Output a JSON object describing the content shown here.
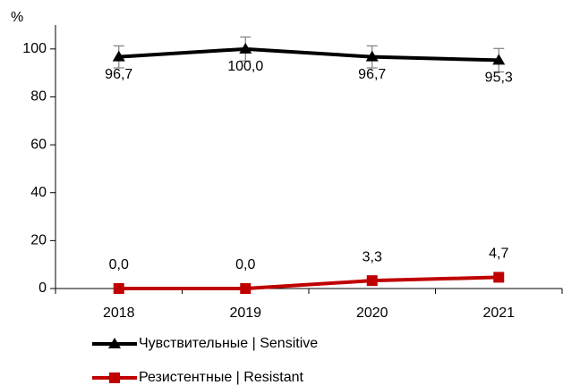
{
  "chart_data": {
    "type": "line",
    "y_label": "%",
    "categories": [
      "2018",
      "2019",
      "2020",
      "2021"
    ],
    "ylim": [
      0,
      110
    ],
    "yticks": [
      0,
      20,
      40,
      60,
      80,
      100
    ],
    "grid": false,
    "series": [
      {
        "name": "Чувствительные | Sensitive",
        "color": "#000000",
        "marker": "triangle",
        "values": [
          96.7,
          100.0,
          96.7,
          95.3
        ],
        "value_labels": [
          "96,7",
          "100,0",
          "96,7",
          "95,3"
        ],
        "errors": [
          4.6,
          5.0,
          4.6,
          4.9
        ]
      },
      {
        "name": "Резистентные | Resistant",
        "color": "#c00000",
        "marker": "square",
        "values": [
          0.0,
          0.0,
          3.3,
          4.7
        ],
        "value_labels": [
          "0,0",
          "0,0",
          "3,3",
          "4,7"
        ]
      }
    ]
  }
}
